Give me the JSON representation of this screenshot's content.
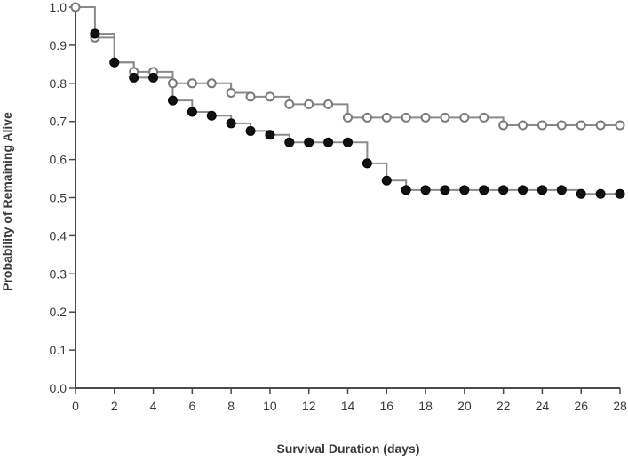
{
  "chart_data": {
    "type": "line",
    "title": "",
    "xlabel": "Survival Duration (days)",
    "ylabel": "Probability of Remaining Alive",
    "xlim": [
      0,
      28
    ],
    "ylim": [
      0.0,
      1.0
    ],
    "x_ticks": [
      "0",
      "2",
      "4",
      "6",
      "8",
      "10",
      "12",
      "14",
      "16",
      "18",
      "20",
      "22",
      "24",
      "26",
      "28"
    ],
    "y_ticks": [
      "0.0",
      "0.1",
      "0.2",
      "0.3",
      "0.4",
      "0.5",
      "0.6",
      "0.7",
      "0.8",
      "0.9",
      "1.0"
    ],
    "grid": false,
    "legend": "none",
    "step": true,
    "series": [
      {
        "marker": "open-circle",
        "color": "#7a7a7a",
        "x": [
          0,
          1,
          2,
          3,
          4,
          5,
          6,
          7,
          8,
          9,
          10,
          11,
          12,
          13,
          14,
          15,
          16,
          17,
          18,
          19,
          20,
          21,
          22,
          23,
          24,
          25,
          26,
          27,
          28
        ],
        "y": [
          1.0,
          0.92,
          0.855,
          0.83,
          0.83,
          0.8,
          0.8,
          0.8,
          0.775,
          0.765,
          0.765,
          0.745,
          0.745,
          0.745,
          0.71,
          0.71,
          0.71,
          0.71,
          0.71,
          0.71,
          0.71,
          0.71,
          0.69,
          0.69,
          0.69,
          0.69,
          0.69,
          0.69,
          0.69
        ]
      },
      {
        "marker": "filled-circle",
        "color": "#111111",
        "x": [
          1,
          2,
          3,
          4,
          5,
          6,
          7,
          8,
          9,
          10,
          11,
          12,
          13,
          14,
          15,
          16,
          17,
          18,
          19,
          20,
          21,
          22,
          23,
          24,
          25,
          26,
          27,
          28
        ],
        "y": [
          0.93,
          0.855,
          0.815,
          0.815,
          0.755,
          0.725,
          0.715,
          0.695,
          0.675,
          0.665,
          0.645,
          0.645,
          0.645,
          0.645,
          0.59,
          0.545,
          0.52,
          0.52,
          0.52,
          0.52,
          0.52,
          0.52,
          0.52,
          0.52,
          0.52,
          0.51,
          0.51,
          0.51
        ]
      }
    ]
  }
}
